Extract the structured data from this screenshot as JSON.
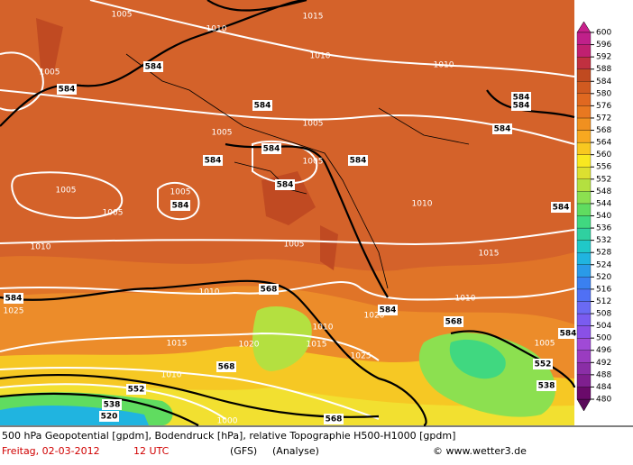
{
  "map": {
    "contour_labels": [
      "1005",
      "1015",
      "1010",
      "584",
      "1005",
      "584",
      "1010",
      "1010",
      "584",
      "1005",
      "1005",
      "584",
      "584",
      "1005",
      "584",
      "584",
      "1005",
      "1005",
      "584",
      "1005",
      "1010",
      "584",
      "1010",
      "1005",
      "1015",
      "584",
      "1010",
      "568",
      "1025",
      "1010",
      "584",
      "1020",
      "568",
      "1015",
      "1020",
      "1015",
      "1010",
      "1005",
      "568",
      "1025",
      "1010",
      "552",
      "552",
      "538",
      "520",
      "538",
      "568",
      "1000",
      "584",
      "584",
      "584",
      "584"
    ],
    "colorbar": {
      "levels": [
        480,
        484,
        488,
        492,
        496,
        500,
        504,
        508,
        512,
        516,
        520,
        524,
        528,
        532,
        536,
        540,
        544,
        548,
        552,
        556,
        560,
        564,
        568,
        572,
        576,
        580,
        584,
        588,
        592,
        596,
        600
      ],
      "colors": [
        "#6a0a6a",
        "#7f1f8f",
        "#8a2ea6",
        "#9a3cc0",
        "#a04ad6",
        "#8a50e6",
        "#7a5cf0",
        "#6a6af4",
        "#5070f4",
        "#3a80f0",
        "#2a9ae8",
        "#20b4e0",
        "#20c8c8",
        "#30d0a0",
        "#40d880",
        "#60dc60",
        "#8ce050",
        "#b4e040",
        "#dce030",
        "#f8e820",
        "#f8c820",
        "#f8a820",
        "#f09020",
        "#e87820",
        "#e06820",
        "#d05a20",
        "#c04a20",
        "#c03040",
        "#c02070",
        "#c0208a"
      ]
    }
  },
  "footer": {
    "description": "500 hPa Geopotential [gpdm], Bodendruck [hPa], relative Topographie H500-H1000 [gpdm]",
    "date": "Freitag, 02-03-2012",
    "time": "12 UTC",
    "model": "(GFS)",
    "analysis": "(Analyse)",
    "credit": "© www.wetter3.de"
  }
}
